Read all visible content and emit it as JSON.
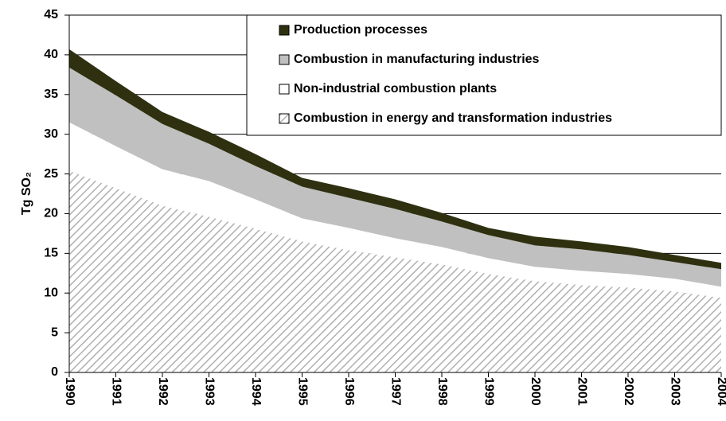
{
  "chart_data": {
    "type": "stacked_area",
    "y_label": "Tg SO₂",
    "categories": [
      "1990",
      "1991",
      "1992",
      "1993",
      "1994",
      "1995",
      "1996",
      "1997",
      "1998",
      "1999",
      "2000",
      "2001",
      "2002",
      "2003",
      "2004"
    ],
    "series": [
      {
        "name": "Production processes",
        "color": "#2e3010",
        "values": [
          2.3,
          1.8,
          1.5,
          1.5,
          1.5,
          1.1,
          1.2,
          1.2,
          1.1,
          0.9,
          1.1,
          1.0,
          1.0,
          0.9,
          0.8
        ]
      },
      {
        "name": "Combustion in manufacturing industries",
        "color": "#c0c0c0",
        "values": [
          6.9,
          6.4,
          5.7,
          4.7,
          4.2,
          4.0,
          3.8,
          3.7,
          3.2,
          2.9,
          2.7,
          2.7,
          2.4,
          2.1,
          2.2
        ]
      },
      {
        "name": "Non-industrial combustion plants",
        "color": "#ffffff",
        "values": [
          6.1,
          5.3,
          4.6,
          4.5,
          3.7,
          2.9,
          2.8,
          2.4,
          2.2,
          2.0,
          1.8,
          1.8,
          1.7,
          1.6,
          1.4
        ]
      },
      {
        "name": "Combustion in energy and transformation industries",
        "color": "#b0b0b0",
        "hatch": true,
        "values": [
          25.4,
          23.2,
          21.0,
          19.6,
          18.1,
          16.5,
          15.4,
          14.5,
          13.6,
          12.4,
          11.5,
          11.0,
          10.7,
          10.2,
          9.4
        ]
      }
    ],
    "ylim": [
      0,
      45
    ],
    "yticks": [
      0,
      5,
      10,
      15,
      20,
      25,
      30,
      35,
      40,
      45
    ],
    "grid": true,
    "legend": "top-right"
  }
}
